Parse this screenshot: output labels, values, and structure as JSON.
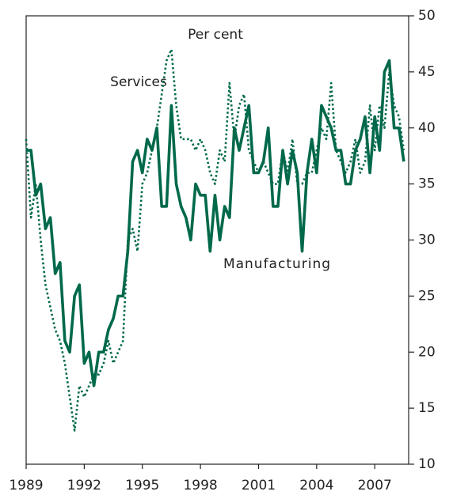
{
  "chart_data": {
    "type": "line",
    "annotations": [
      "Per cent",
      "Services",
      "Manufacturing"
    ],
    "x": [
      1989,
      1989.25,
      1989.5,
      1989.75,
      1990,
      1990.25,
      1990.5,
      1990.75,
      1991,
      1991.25,
      1991.5,
      1991.75,
      1992,
      1992.25,
      1992.5,
      1992.75,
      1993,
      1993.25,
      1993.5,
      1993.75,
      1994,
      1994.25,
      1994.5,
      1994.75,
      1995,
      1995.25,
      1995.5,
      1995.75,
      1996,
      1996.25,
      1996.5,
      1996.75,
      1997,
      1997.25,
      1997.5,
      1997.75,
      1998,
      1998.25,
      1998.5,
      1998.75,
      1999,
      1999.25,
      1999.5,
      1999.75,
      2000,
      2000.25,
      2000.5,
      2000.75,
      2001,
      2001.25,
      2001.5,
      2001.75,
      2002,
      2002.25,
      2002.5,
      2002.75,
      2003,
      2003.25,
      2003.5,
      2003.75,
      2004,
      2004.25,
      2004.5,
      2004.75,
      2005,
      2005.25,
      2005.5,
      2005.75,
      2006,
      2006.25,
      2006.5,
      2006.75,
      2007,
      2007.25,
      2007.5,
      2007.75,
      2008,
      2008.25,
      2008.5
    ],
    "series": [
      {
        "name": "Manufacturing",
        "color": "#00694b",
        "style": "solid",
        "values": [
          38,
          38,
          34,
          35,
          31,
          32,
          27,
          28,
          21,
          20,
          25,
          26,
          19,
          20,
          17,
          20,
          20,
          22,
          23,
          25,
          25,
          29,
          37,
          38,
          36,
          39,
          38,
          40,
          33,
          33,
          42,
          35,
          33,
          32,
          30,
          35,
          34,
          34,
          29,
          34,
          30,
          33,
          32,
          40,
          38,
          40,
          42,
          36,
          36,
          37,
          40,
          33,
          33,
          38,
          35,
          38,
          36,
          29,
          36,
          39,
          36,
          42,
          41,
          40,
          38,
          38,
          35,
          35,
          38,
          39,
          41,
          36,
          41,
          38,
          45,
          46,
          40,
          40,
          37
        ]
      },
      {
        "name": "Services",
        "color": "#00694b",
        "style": "dotted",
        "values": [
          39,
          32,
          35,
          30,
          26,
          24,
          22,
          21,
          19,
          16,
          13,
          17,
          16,
          17,
          18,
          18,
          19,
          21,
          19,
          20,
          21,
          30,
          31,
          29,
          35,
          36,
          38,
          40,
          43,
          46,
          47,
          42,
          39,
          39,
          39,
          38,
          39,
          38,
          36,
          35,
          38,
          37,
          44,
          39,
          42,
          43,
          38,
          37,
          36,
          37,
          36,
          35,
          35,
          38,
          36,
          39,
          35,
          35,
          36,
          36,
          38,
          40,
          39,
          44,
          38,
          37,
          36,
          37,
          39,
          36,
          37,
          42,
          38,
          42,
          40,
          45,
          42,
          41,
          38
        ]
      }
    ],
    "xlim": [
      1989,
      2008.75
    ],
    "xticks": [
      1989,
      1992,
      1995,
      1998,
      2001,
      2004,
      2007
    ],
    "ylim": [
      10,
      50
    ],
    "yticks": [
      10,
      15,
      20,
      25,
      30,
      35,
      40,
      45,
      50
    ]
  }
}
